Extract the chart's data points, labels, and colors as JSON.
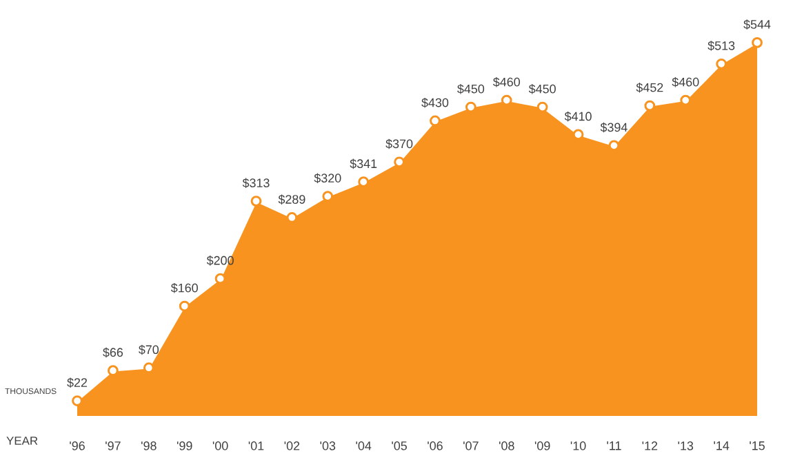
{
  "chart_data": {
    "type": "area",
    "xlabel": "YEAR",
    "ylabel": "THOUSANDS",
    "categories": [
      "'96",
      "'97",
      "'98",
      "'99",
      "'00",
      "'01",
      "'02",
      "'03",
      "'04",
      "'05",
      "'06",
      "'07",
      "'08",
      "'09",
      "'10",
      "'11",
      "'12",
      "'13",
      "'14",
      "'15"
    ],
    "values": [
      22,
      66,
      70,
      160,
      200,
      313,
      289,
      320,
      341,
      370,
      430,
      450,
      460,
      450,
      410,
      394,
      452,
      460,
      513,
      544
    ],
    "value_labels": [
      "$22",
      "$66",
      "$70",
      "$160",
      "$200",
      "$313",
      "$289",
      "$320",
      "$341",
      "$370",
      "$430",
      "$450",
      "$460",
      "$450",
      "$410",
      "$394",
      "$452",
      "$460",
      "$513",
      "$544"
    ],
    "color": "#f7931e",
    "marker": "circle"
  }
}
